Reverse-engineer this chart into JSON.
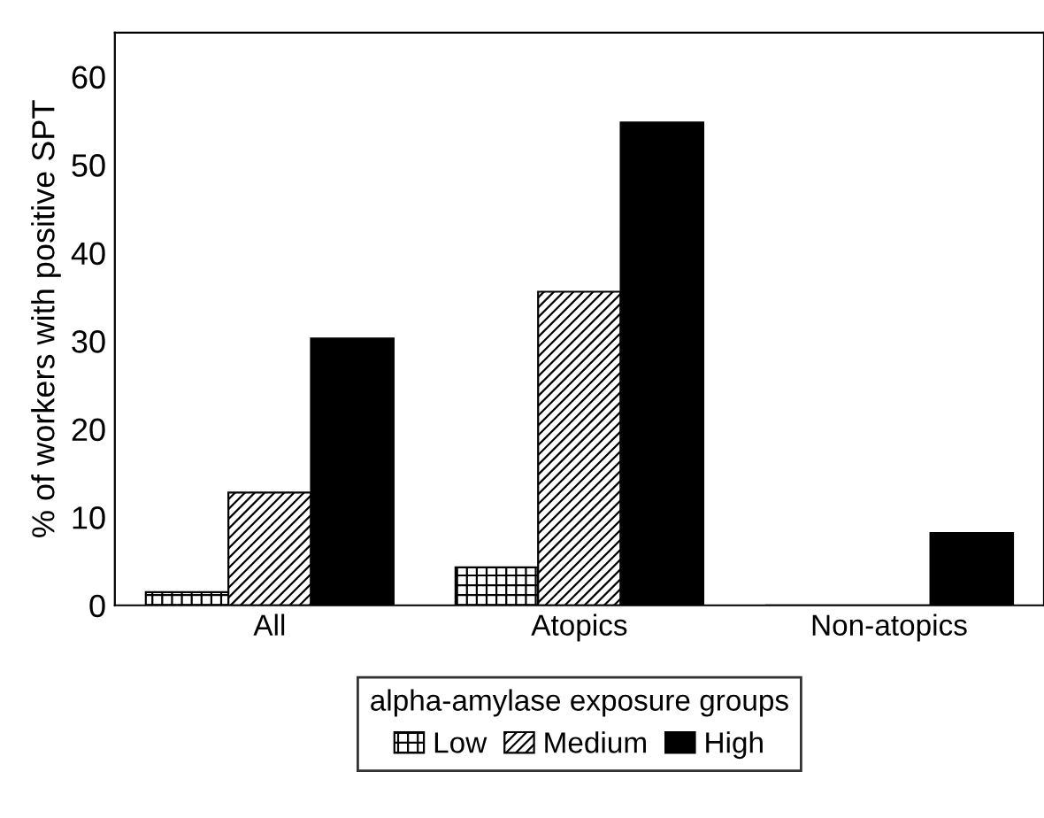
{
  "chart_data": {
    "type": "bar",
    "ylabel": "% of workers with positive SPT",
    "legend_title": "alpha-amylase exposure groups",
    "categories": [
      "All",
      "Atopics",
      "Non-atopics"
    ],
    "series": [
      {
        "name": "Low",
        "color": "#000000",
        "values": [
          1.5,
          4.3,
          0
        ]
      },
      {
        "name": "Medium",
        "color": "#000000",
        "values": [
          12.8,
          35.6,
          0
        ]
      },
      {
        "name": "High",
        "color": "#000000",
        "values": [
          30.3,
          54.8,
          8.2
        ]
      }
    ],
    "ylim": [
      0,
      65
    ],
    "yticks": [
      0,
      10,
      20,
      30,
      40,
      50,
      60
    ],
    "grid": false,
    "legend": "bottom"
  }
}
